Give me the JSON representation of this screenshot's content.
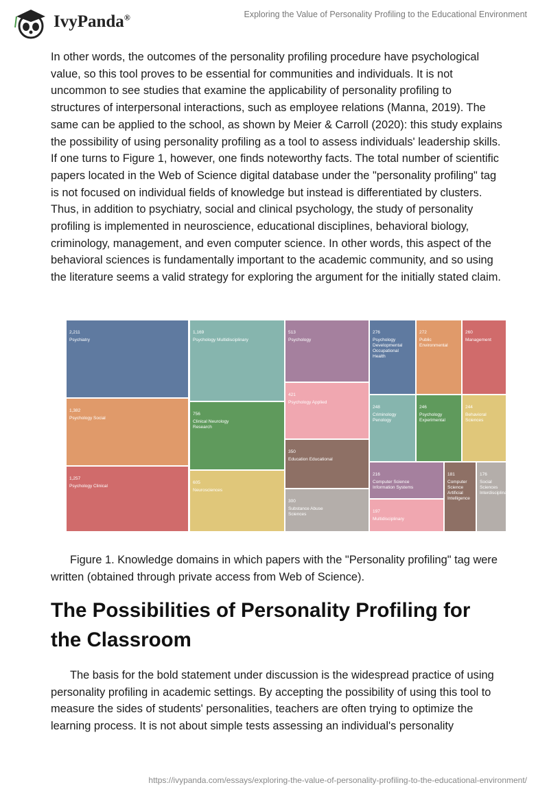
{
  "header": {
    "brand": "IvyPanda",
    "brand_mark": "®",
    "doc_title": "Exploring the Value of Personality Profiling to the Educational Environment"
  },
  "paragraphs": [
    "In other words, the outcomes of the personality profiling procedure have psychological value, so this tool proves to be essential for communities and individuals. It is not uncommon to see studies that examine the applicability of personality profiling to structures of interpersonal interactions, such as employee relations (Manna, 2019). The same can be applied to the school, as shown by Meier & Carroll (2020): this study explains the possibility of using personality profiling as a tool to assess individuals' leadership skills. If one turns to Figure 1, however, one finds noteworthy facts. The total number of scientific papers located in the Web of Science digital database under the \"personality profiling\" tag is not focused on individual fields of knowledge but instead is differentiated by clusters. Thus, in addition to psychiatry, social and clinical psychology, the study of personality profiling is implemented in neuroscience, educational disciplines, behavioral biology, criminology, management, and even computer science. In other words, this aspect of the behavioral sciences is fundamentally important to the academic community, and so using the literature seems a valid strategy for exploring the argument for the initially stated claim."
  ],
  "figure": {
    "type": "treemap",
    "cells": [
      {
        "value": 2211,
        "label": "2,211",
        "name": [
          "Psychiatry"
        ],
        "color": "#5f7aa0"
      },
      {
        "value": 1382,
        "label": "1,382",
        "name": [
          "Psychology Social"
        ],
        "color": "#e09a6a"
      },
      {
        "value": 1257,
        "label": "1,257",
        "name": [
          "Psychology Clinical"
        ],
        "color": "#d06b6b"
      },
      {
        "value": 1169,
        "label": "1,169",
        "name": [
          "Psychology Multidisciplinary"
        ],
        "color": "#86b5ae"
      },
      {
        "value": 756,
        "label": "756",
        "name": [
          "Clinical Neurology",
          "Research"
        ],
        "color": "#5f9a5c"
      },
      {
        "value": 605,
        "label": "605",
        "name": [
          "Neurosciences"
        ],
        "color": "#e0c77a"
      },
      {
        "value": 513,
        "label": "513",
        "name": [
          "Psychology"
        ],
        "color": "#a5809e"
      },
      {
        "value": 421,
        "label": "421",
        "name": [
          "Psychology Applied"
        ],
        "color": "#f0a7b0"
      },
      {
        "value": 350,
        "label": "350",
        "name": [
          "Education Educational"
        ],
        "color": "#8e7065"
      },
      {
        "value": 300,
        "label": "300",
        "name": [
          "Substance Abuse",
          "Sciences"
        ],
        "color": "#b4aeaa"
      },
      {
        "value": 276,
        "label": "276",
        "name": [
          "Psychology",
          "Developmental",
          "Occupational",
          "Health"
        ],
        "color": "#5f7aa0"
      },
      {
        "value": 272,
        "label": "272",
        "name": [
          "Public",
          "Environmental"
        ],
        "color": "#e09a6a"
      },
      {
        "value": 260,
        "label": "260",
        "name": [
          "Management"
        ],
        "color": "#d06b6b"
      },
      {
        "value": 248,
        "label": "248",
        "name": [
          "Criminology",
          "Penology"
        ],
        "color": "#86b5ae"
      },
      {
        "value": 246,
        "label": "246",
        "name": [
          "Psychology",
          "Experimental"
        ],
        "color": "#5f9a5c"
      },
      {
        "value": 244,
        "label": "244",
        "name": [
          "Behavioral",
          "Sciences"
        ],
        "color": "#e0c77a"
      },
      {
        "value": 216,
        "label": "216",
        "name": [
          "Computer Science",
          "Information Systems"
        ],
        "color": "#a5809e"
      },
      {
        "value": 197,
        "label": "197",
        "name": [
          "Multidisciplinary"
        ],
        "color": "#f0a7b0"
      },
      {
        "value": 181,
        "label": "181",
        "name": [
          "Computer",
          "Science",
          "Artificial",
          "Intelligence"
        ],
        "color": "#8e7065"
      },
      {
        "value": 176,
        "label": "176",
        "name": [
          "Social",
          "Sciences",
          "Interdisciplinary"
        ],
        "color": "#b4aeaa"
      }
    ],
    "caption": "Figure 1. Knowledge domains in which papers with the \"Personality profiling\" tag were written (obtained through private access from Web of Science)."
  },
  "heading": "The Possibilities of Personality Profiling for the Classroom",
  "paragraphs_after": [
    "The basis for the bold statement under discussion is the widespread practice of using personality profiling in academic settings. By accepting the possibility of using this tool to measure the sides of students' personalities, teachers are often trying to optimize the learning process. It is not about simple tests assessing an individual's personality"
  ],
  "footer": {
    "url": "https://ivypanda.com/essays/exploring-the-value-of-personality-profiling-to-the-educational-environment/"
  }
}
